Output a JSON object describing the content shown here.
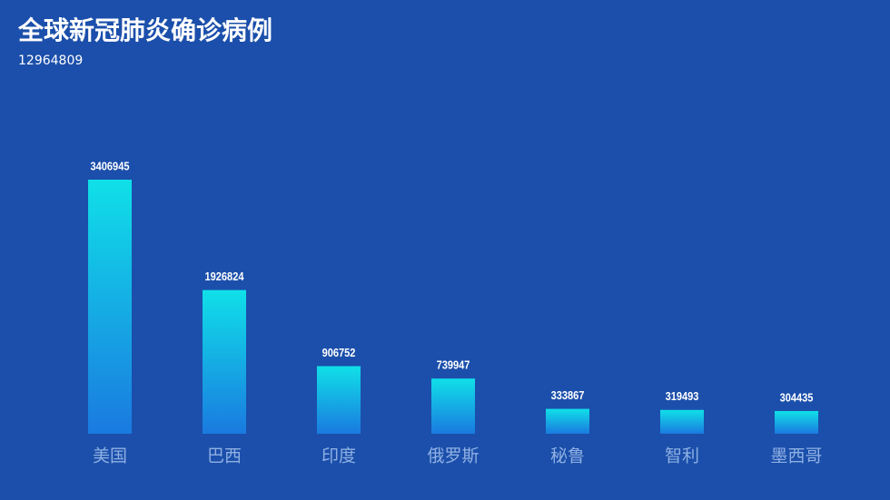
{
  "chart_data": {
    "type": "bar",
    "title": "全球新冠肺炎确诊病例",
    "subtitle": "12964809",
    "categories": [
      "美国",
      "巴西",
      "印度",
      "俄罗斯",
      "秘鲁",
      "智利",
      "墨西哥"
    ],
    "values": [
      3406945,
      1926824,
      906752,
      739947,
      333867,
      319493,
      304435
    ],
    "color": "#10e0e8"
  }
}
